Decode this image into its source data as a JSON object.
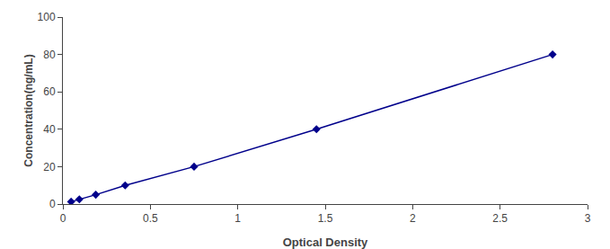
{
  "chart_data": {
    "type": "line",
    "x": [
      0.047,
      0.094,
      0.188,
      0.356,
      0.75,
      1.45,
      2.8
    ],
    "values": [
      1.25,
      2.5,
      5.0,
      10.0,
      20.0,
      40.0,
      80.0
    ],
    "color": "#00008B",
    "marker": "diamond",
    "line_style": "solid",
    "xlabel": "Optical Density",
    "ylabel": "Concentration(ng/mL)",
    "xlim": [
      0,
      3.0
    ],
    "ylim": [
      0,
      100
    ],
    "xticks": [
      0,
      0.5,
      1,
      1.5,
      2,
      2.5,
      3
    ],
    "yticks": [
      0,
      20,
      40,
      60,
      80,
      100
    ],
    "grid": false
  }
}
